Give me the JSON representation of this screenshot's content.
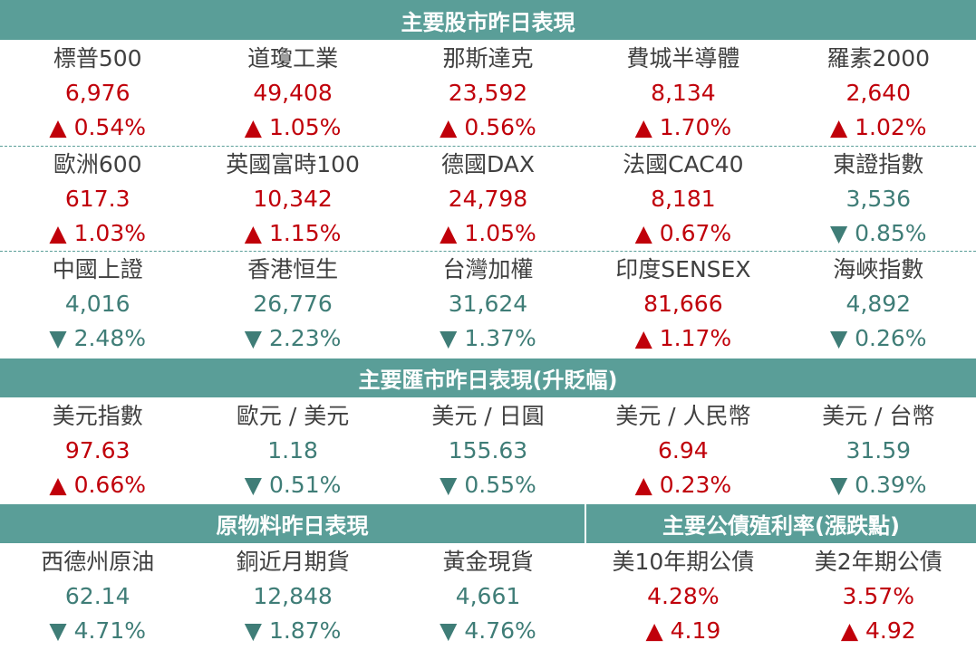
{
  "stocks": {
    "title": "主要股市昨日表現",
    "rows": [
      [
        {
          "name": "標普500",
          "value": "6,976",
          "change": "▲ 0.54%",
          "dir": "up"
        },
        {
          "name": "道瓊工業",
          "value": "49,408",
          "change": "▲ 1.05%",
          "dir": "up"
        },
        {
          "name": "那斯達克",
          "value": "23,592",
          "change": "▲ 0.56%",
          "dir": "up"
        },
        {
          "name": "費城半導體",
          "value": "8,134",
          "change": "▲ 1.70%",
          "dir": "up"
        },
        {
          "name": "羅素2000",
          "value": "2,640",
          "change": "▲ 1.02%",
          "dir": "up"
        }
      ],
      [
        {
          "name": "歐洲600",
          "value": "617.3",
          "change": "▲ 1.03%",
          "dir": "up"
        },
        {
          "name": "英國富時100",
          "value": "10,342",
          "change": "▲ 1.15%",
          "dir": "up"
        },
        {
          "name": "德國DAX",
          "value": "24,798",
          "change": "▲ 1.05%",
          "dir": "up"
        },
        {
          "name": "法國CAC40",
          "value": "8,181",
          "change": "▲ 0.67%",
          "dir": "up"
        },
        {
          "name": "東證指數",
          "value": "3,536",
          "change": "▼ 0.85%",
          "dir": "down"
        }
      ],
      [
        {
          "name": "中國上證",
          "value": "4,016",
          "change": "▼ 2.48%",
          "dir": "down"
        },
        {
          "name": "香港恒生",
          "value": "26,776",
          "change": "▼ 2.23%",
          "dir": "down"
        },
        {
          "name": "台灣加權",
          "value": "31,624",
          "change": "▼ 1.37%",
          "dir": "down"
        },
        {
          "name": "印度SENSEX",
          "value": "81,666",
          "change": "▲ 1.17%",
          "dir": "up"
        },
        {
          "name": "海峽指數",
          "value": "4,892",
          "change": "▼ 0.26%",
          "dir": "down"
        }
      ]
    ]
  },
  "fx": {
    "title": "主要匯市昨日表現(升貶幅)",
    "row": [
      {
        "name": "美元指數",
        "value": "97.63",
        "change": "▲ 0.66%",
        "dir": "up"
      },
      {
        "name": "歐元 / 美元",
        "value": "1.18",
        "change": "▼ 0.51%",
        "dir": "down"
      },
      {
        "name": "美元 / 日圓",
        "value": "155.63",
        "change": "▼ 0.55%",
        "dir": "down"
      },
      {
        "name": "美元 / 人民幣",
        "value": "6.94",
        "change": "▲ 0.23%",
        "dir": "up"
      },
      {
        "name": "美元 / 台幣",
        "value": "31.59",
        "change": "▼ 0.39%",
        "dir": "down"
      }
    ]
  },
  "commodities": {
    "title": "原物料昨日表現",
    "row": [
      {
        "name": "西德州原油",
        "value": "62.14",
        "change": "▼ 4.71%",
        "dir": "down"
      },
      {
        "name": "銅近月期貨",
        "value": "12,848",
        "change": "▼ 1.87%",
        "dir": "down"
      },
      {
        "name": "黃金現貨",
        "value": "4,661",
        "change": "▼ 4.76%",
        "dir": "down"
      }
    ]
  },
  "bonds": {
    "title": "主要公債殖利率(漲跌點)",
    "row": [
      {
        "name": "美10年期公債",
        "value": "4.28%",
        "change": "▲ 4.19",
        "dir": "up"
      },
      {
        "name": "美2年期公債",
        "value": "3.57%",
        "change": "▲ 4.92",
        "dir": "up"
      }
    ]
  },
  "colors": {
    "up": "#c0000a",
    "down": "#3f7d77",
    "header": "#5a9e98"
  }
}
